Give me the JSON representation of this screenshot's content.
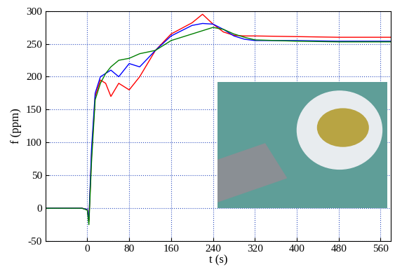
{
  "chart_data": {
    "type": "line",
    "x_label": "t (s)",
    "y_label": "f (ppm)",
    "x": [
      -80,
      -40,
      -10,
      0,
      3,
      8,
      15,
      25,
      35,
      45,
      60,
      80,
      100,
      130,
      160,
      200,
      220,
      240,
      260,
      280,
      300,
      320,
      400,
      480,
      580
    ],
    "series": [
      {
        "color": "#ff0000",
        "values": [
          0,
          0,
          0,
          -2,
          -20,
          80,
          170,
          195,
          190,
          170,
          190,
          180,
          200,
          240,
          265,
          282,
          295,
          280,
          268,
          263,
          262,
          262,
          261,
          260,
          260
        ]
      },
      {
        "color": "#0000ff",
        "values": [
          0,
          0,
          0,
          -2,
          -18,
          90,
          175,
          200,
          205,
          210,
          200,
          220,
          215,
          240,
          262,
          278,
          281,
          280,
          272,
          262,
          257,
          255,
          255,
          254,
          254
        ]
      },
      {
        "color": "#007f00",
        "values": [
          0,
          0,
          0,
          -3,
          -25,
          70,
          165,
          190,
          205,
          215,
          225,
          228,
          235,
          240,
          255,
          265,
          270,
          275,
          272,
          265,
          260,
          256,
          254,
          253,
          253
        ]
      }
    ],
    "xlim": [
      -80,
      580
    ],
    "xticks": [
      0,
      80,
      160,
      240,
      320,
      400,
      480,
      560
    ],
    "ylim": [
      -50,
      300
    ],
    "yticks": [
      -50,
      0,
      50,
      100,
      150,
      200,
      250,
      300
    ],
    "grid": true
  }
}
